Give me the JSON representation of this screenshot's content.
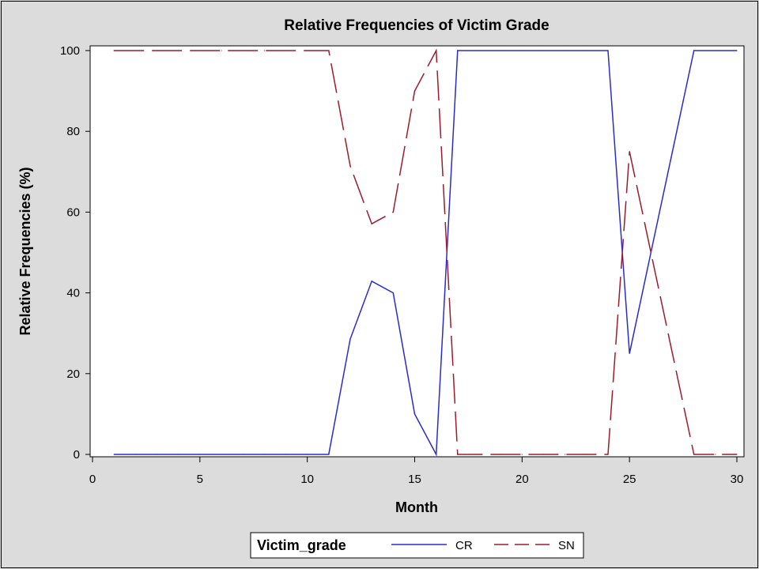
{
  "chart_data": {
    "type": "line",
    "title": "Relative Frequencies of Victim Grade",
    "xlabel": "Month",
    "ylabel": "Relative Frequencies (%)",
    "xlim": [
      0,
      30
    ],
    "ylim": [
      0,
      100
    ],
    "xticks": [
      0,
      5,
      10,
      15,
      20,
      25,
      30
    ],
    "yticks": [
      0,
      20,
      40,
      60,
      80,
      100
    ],
    "grid": false,
    "legend_title": "Victim_grade",
    "legend_position": "bottom",
    "series": [
      {
        "name": "CR",
        "color": "#2b2bc8",
        "dash": "solid",
        "x": [
          1,
          2,
          3,
          4,
          5,
          6,
          7,
          8,
          9,
          10,
          11,
          12,
          13,
          14,
          15,
          16,
          17,
          18,
          19,
          20,
          21,
          22,
          23,
          24,
          25,
          26,
          27,
          28,
          29,
          30
        ],
        "values": [
          0,
          0,
          0,
          0,
          0,
          0,
          0,
          0,
          0,
          0,
          0,
          28.6,
          42.9,
          40,
          10,
          0,
          100,
          100,
          100,
          100,
          100,
          100,
          100,
          100,
          25,
          50,
          75,
          100,
          100,
          100
        ]
      },
      {
        "name": "SN",
        "color": "#9b1c2c",
        "dash": "dashed",
        "x": [
          1,
          2,
          3,
          4,
          5,
          6,
          7,
          8,
          9,
          10,
          11,
          12,
          13,
          14,
          15,
          16,
          17,
          18,
          19,
          20,
          21,
          22,
          23,
          24,
          25,
          26,
          27,
          28,
          29,
          30
        ],
        "values": [
          100,
          100,
          100,
          100,
          100,
          100,
          100,
          100,
          100,
          100,
          100,
          71.4,
          57.1,
          60,
          90,
          100,
          0,
          0,
          0,
          0,
          0,
          0,
          0,
          0,
          75,
          50,
          25,
          0,
          0,
          0
        ]
      }
    ]
  }
}
